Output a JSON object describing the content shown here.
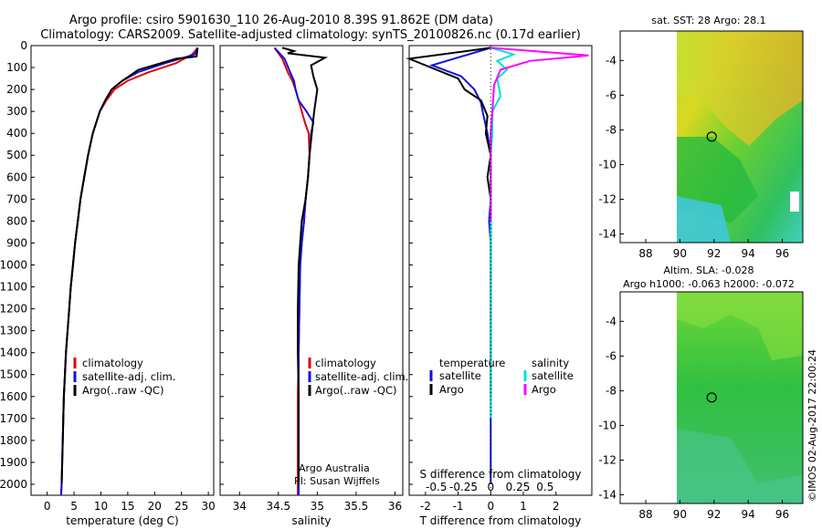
{
  "title": {
    "line1": "Argo profile: csiro 5901630_110 26-Aug-2010 8.39S 91.862E (DM data)",
    "line2": "Climatology: CARS2009. Satellite-adjusted climatology: synTS_20100826.nc (0.17d earlier)"
  },
  "colors": {
    "climatology": "#e00000",
    "satellite": "#1010e0",
    "argo": "#000000",
    "argo_sal": "#ff00ff",
    "sat_sal": "#00e0e0"
  },
  "credits": {
    "argo_australia": "Argo Australia",
    "pi": "PI: Susan Wijffels",
    "imos": "©IMOS 02-Aug-2017 22:00:24"
  },
  "chart_data": [
    {
      "type": "line",
      "name": "temperature-profile",
      "xlabel": "temperature (deg C)",
      "ylabel": "",
      "xlim": [
        -3,
        31
      ],
      "ylim": [
        2050,
        0
      ],
      "xticks": [
        0,
        5,
        10,
        15,
        20,
        25,
        30
      ],
      "yticks": [
        0,
        100,
        200,
        300,
        400,
        500,
        600,
        700,
        800,
        900,
        1000,
        1100,
        1200,
        1300,
        1400,
        1500,
        1600,
        1700,
        1800,
        1900,
        2000
      ],
      "legend": [
        "climatology",
        "satellite-adj. clim.",
        "Argo(..raw -QC)"
      ],
      "series": [
        {
          "name": "climatology",
          "color": "#e00000",
          "x": [
            28,
            27,
            24,
            19,
            15,
            12.5,
            11,
            9.8,
            8.5,
            7.6,
            6.9,
            6.2,
            5.7,
            5.2,
            4.8,
            4.4,
            4.1,
            3.8,
            3.5,
            3.3,
            3.1,
            2.9,
            2.7,
            2.6
          ],
          "y": [
            10,
            40,
            80,
            120,
            160,
            200,
            250,
            300,
            400,
            500,
            600,
            700,
            800,
            900,
            1000,
            1100,
            1200,
            1300,
            1400,
            1500,
            1600,
            1800,
            2000,
            2050
          ]
        },
        {
          "name": "satellite-adj. clim.",
          "color": "#1010e0",
          "x": [
            28,
            27.5,
            22,
            17,
            14,
            12,
            10.8,
            9.8,
            8.5,
            7.6,
            6.9,
            6.2,
            5.7,
            5.2,
            4.8,
            4.4,
            4.1,
            3.8,
            3.5,
            3.3,
            3.1,
            2.9,
            2.7,
            2.6
          ],
          "y": [
            10,
            40,
            80,
            120,
            160,
            200,
            250,
            300,
            400,
            500,
            600,
            700,
            800,
            900,
            1000,
            1100,
            1200,
            1300,
            1400,
            1500,
            1600,
            1800,
            2000,
            2050
          ]
        },
        {
          "name": "Argo",
          "color": "#000000",
          "x": [
            28,
            27.8,
            24,
            17,
            14,
            12,
            10.8,
            9.8,
            8.5,
            7.6,
            6.9,
            6.2,
            5.7,
            5.2,
            4.8,
            4.4,
            4.1,
            3.8,
            3.5,
            3.3,
            3.1,
            2.9,
            2.7
          ],
          "y": [
            10,
            50,
            60,
            110,
            160,
            200,
            250,
            300,
            400,
            500,
            600,
            700,
            800,
            900,
            1000,
            1100,
            1200,
            1300,
            1400,
            1500,
            1600,
            1800,
            2000
          ]
        }
      ]
    },
    {
      "type": "line",
      "name": "salinity-profile",
      "xlabel": "salinity",
      "xlim": [
        33.75,
        36.1
      ],
      "ylim": [
        2050,
        0
      ],
      "xticks": [
        34,
        34.5,
        35,
        35.5,
        36
      ],
      "legend": [
        "climatology",
        "satellite-adj. clim.",
        "Argo(..raw -QC)"
      ],
      "series": [
        {
          "name": "climatology",
          "color": "#e00000",
          "x": [
            34.45,
            34.55,
            34.62,
            34.68,
            34.72,
            34.76,
            34.8,
            34.84,
            34.89,
            34.9,
            34.88,
            34.85,
            34.83,
            34.8,
            34.78,
            34.77,
            34.76,
            34.75,
            34.75,
            34.75,
            34.75
          ],
          "y": [
            10,
            60,
            120,
            160,
            200,
            250,
            300,
            350,
            400,
            500,
            600,
            700,
            800,
            900,
            1000,
            1200,
            1400,
            1600,
            1800,
            2000,
            2050
          ]
        },
        {
          "name": "satellite-adj. clim.",
          "color": "#1010e0",
          "x": [
            34.45,
            34.58,
            34.65,
            34.7,
            34.72,
            34.76,
            34.86,
            34.95,
            34.92,
            34.9,
            34.88,
            34.85,
            34.83,
            34.8,
            34.78,
            34.77,
            34.76,
            34.76,
            34.76,
            34.76,
            34.76
          ],
          "y": [
            10,
            60,
            120,
            160,
            200,
            250,
            300,
            350,
            400,
            500,
            600,
            700,
            800,
            900,
            1000,
            1200,
            1400,
            1600,
            1800,
            2000,
            2050
          ]
        },
        {
          "name": "Argo",
          "color": "#000000",
          "x": [
            34.55,
            34.7,
            34.62,
            35.1,
            34.92,
            34.95,
            35.0,
            34.96,
            34.93,
            34.9,
            34.88,
            34.85,
            34.8,
            34.78,
            34.76,
            34.75,
            34.75,
            34.76,
            34.76,
            34.76
          ],
          "y": [
            10,
            25,
            35,
            55,
            90,
            140,
            200,
            300,
            400,
            500,
            600,
            700,
            800,
            900,
            1000,
            1200,
            1400,
            1600,
            1800,
            2000
          ]
        }
      ]
    },
    {
      "type": "line",
      "name": "difference-profile",
      "xlabel": "T difference from climatology",
      "xlabel_top": "S difference from climatology",
      "xlim": [
        -2.5,
        3.1
      ],
      "ylim": [
        2050,
        0
      ],
      "xticks": [
        -2,
        -1,
        0,
        1,
        2
      ],
      "xticks_top": [
        "-0.5",
        "-0.25",
        "0",
        "0.25",
        "0.5"
      ],
      "legend_temperature": [
        "temperature",
        "satellite",
        "Argo"
      ],
      "legend_salinity": [
        "salinity",
        "satellite",
        "Argo"
      ],
      "series": [
        {
          "name": "temperature satellite",
          "color": "#1010e0",
          "x": [
            0,
            -1.8,
            -0.9,
            -0.5,
            -0.3,
            -0.25,
            -0.1,
            0,
            0,
            0,
            -0.05,
            0,
            0,
            0,
            0,
            0,
            0,
            0,
            0
          ],
          "y": [
            10,
            90,
            140,
            200,
            260,
            300,
            400,
            500,
            600,
            700,
            800,
            900,
            1000,
            1200,
            1400,
            1600,
            1800,
            1950,
            2000
          ]
        },
        {
          "name": "temperature Argo",
          "color": "#000000",
          "x": [
            0,
            -2.5,
            -1.0,
            -0.8,
            -0.3,
            -0.1,
            -0.15,
            0,
            -0.1,
            0,
            0,
            0,
            0,
            0,
            0
          ],
          "y": [
            10,
            60,
            150,
            200,
            250,
            320,
            400,
            500,
            600,
            700,
            800,
            1000,
            1200,
            1400,
            1600
          ]
        },
        {
          "name": "salinity satellite",
          "color": "#00e0e0",
          "x": [
            0,
            0.7,
            0.2,
            0.5,
            0.2,
            0.3,
            0.05,
            0.05,
            0,
            0,
            0,
            0,
            0
          ],
          "y": [
            10,
            40,
            70,
            110,
            150,
            230,
            300,
            400,
            500,
            700,
            900,
            1200,
            1700
          ]
        },
        {
          "name": "salinity Argo",
          "color": "#ff00ff",
          "x": [
            0,
            3.0,
            1.2,
            0.3,
            0.1,
            0.05,
            0,
            0,
            0
          ],
          "y": [
            10,
            45,
            70,
            110,
            180,
            300,
            400,
            600,
            800
          ]
        }
      ]
    },
    {
      "type": "heatmap",
      "name": "sst-map",
      "title": "sat. SST: 28 Argo: 28.1",
      "xlim": [
        86.5,
        97.2
      ],
      "ylim": [
        -14.5,
        -2.3
      ],
      "xticks": [
        88,
        90,
        92,
        94,
        96
      ],
      "yticks": [
        -4,
        -6,
        -8,
        -10,
        -12,
        -14
      ],
      "argo_position": {
        "lon": 91.862,
        "lat": -8.39
      }
    },
    {
      "type": "heatmap",
      "name": "sla-map",
      "title1": "Altim. SLA: -0.028",
      "title2": "Argo h1000: -0.063 h2000: -0.072",
      "xlim": [
        86.5,
        97.2
      ],
      "ylim": [
        -14.5,
        -2.3
      ],
      "xticks": [
        88,
        90,
        92,
        94,
        96
      ],
      "yticks": [
        -4,
        -6,
        -8,
        -10,
        -12,
        -14
      ],
      "argo_position": {
        "lon": 91.862,
        "lat": -8.39
      }
    }
  ]
}
